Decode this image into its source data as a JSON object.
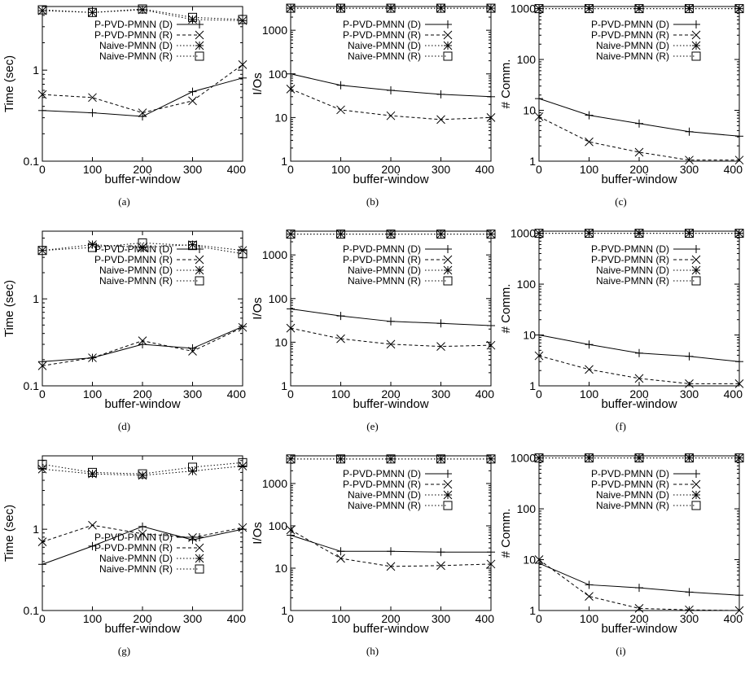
{
  "chart_data": [
    {
      "type": "line",
      "caption": "(a)",
      "xlabel": "buffer-window",
      "ylabel": "Time (sec)",
      "yscale": "log",
      "ylim": [
        0.1,
        5
      ],
      "xticks": [
        0,
        100,
        200,
        300,
        400
      ],
      "yticks": [
        0.1,
        1
      ],
      "legend_position": "top-right",
      "x": [
        0,
        100,
        200,
        300,
        400
      ],
      "series": [
        {
          "name": "P-PVD-PMNN (D)",
          "marker": "plus",
          "dash": "solid",
          "values": [
            0.36,
            0.34,
            0.31,
            0.58,
            0.82
          ]
        },
        {
          "name": "P-PVD-PMNN (R)",
          "marker": "cross",
          "dash": "dashed",
          "values": [
            0.54,
            0.5,
            0.34,
            0.46,
            1.15
          ]
        },
        {
          "name": "Naive-PMNN (D)",
          "marker": "star",
          "dash": "dotted",
          "values": [
            4.5,
            4.3,
            4.6,
            3.6,
            3.5
          ]
        },
        {
          "name": "Naive-PMNN (R)",
          "marker": "square",
          "dash": "dotted",
          "values": [
            4.6,
            4.3,
            4.7,
            3.8,
            3.6
          ]
        }
      ]
    },
    {
      "type": "line",
      "caption": "(b)",
      "xlabel": "buffer-window",
      "ylabel": "I/Os",
      "yscale": "log",
      "ylim": [
        1,
        3500
      ],
      "xticks": [
        0,
        100,
        200,
        300,
        400
      ],
      "yticks": [
        1,
        10,
        100,
        1000
      ],
      "legend_position": "top-right",
      "x": [
        0,
        100,
        200,
        300,
        400
      ],
      "series": [
        {
          "name": "P-PVD-PMNN (D)",
          "marker": "plus",
          "dash": "solid",
          "values": [
            100,
            55,
            42,
            34,
            30
          ]
        },
        {
          "name": "P-PVD-PMNN (R)",
          "marker": "cross",
          "dash": "dashed",
          "values": [
            45,
            15,
            11,
            9,
            10
          ]
        },
        {
          "name": "Naive-PMNN (D)",
          "marker": "star",
          "dash": "dotted",
          "values": [
            3200,
            3200,
            3200,
            3200,
            3200
          ]
        },
        {
          "name": "Naive-PMNN (R)",
          "marker": "square",
          "dash": "dotted",
          "values": [
            3200,
            3200,
            3200,
            3200,
            3200
          ]
        }
      ]
    },
    {
      "type": "line",
      "caption": "(c)",
      "xlabel": "buffer-window",
      "ylabel": "# Comm.",
      "yscale": "log",
      "ylim": [
        1,
        1100
      ],
      "xticks": [
        0,
        100,
        200,
        300,
        400
      ],
      "yticks": [
        1,
        10,
        100,
        1000
      ],
      "legend_position": "top-right",
      "x": [
        0,
        100,
        200,
        300,
        400
      ],
      "series": [
        {
          "name": "P-PVD-PMNN (D)",
          "marker": "plus",
          "dash": "solid",
          "values": [
            17,
            8,
            5.5,
            3.8,
            3.1
          ]
        },
        {
          "name": "P-PVD-PMNN (R)",
          "marker": "cross",
          "dash": "dashed",
          "values": [
            7.5,
            2.4,
            1.5,
            1.05,
            1.05
          ]
        },
        {
          "name": "Naive-PMNN (D)",
          "marker": "star",
          "dash": "dotted",
          "values": [
            1000,
            1000,
            1000,
            1000,
            1000
          ]
        },
        {
          "name": "Naive-PMNN (R)",
          "marker": "square",
          "dash": "dotted",
          "values": [
            1000,
            1000,
            1000,
            1000,
            1000
          ]
        }
      ]
    },
    {
      "type": "line",
      "caption": "(d)",
      "xlabel": "buffer-window",
      "ylabel": "Time (sec)",
      "yscale": "log",
      "ylim": [
        0.1,
        6
      ],
      "xticks": [
        0,
        100,
        200,
        300,
        400
      ],
      "yticks": [
        0.1,
        1
      ],
      "legend_position": "top-right",
      "x": [
        0,
        100,
        200,
        300,
        400
      ],
      "series": [
        {
          "name": "P-PVD-PMNN (D)",
          "marker": "plus",
          "dash": "solid",
          "values": [
            0.19,
            0.21,
            0.3,
            0.27,
            0.48
          ]
        },
        {
          "name": "P-PVD-PMNN (R)",
          "marker": "cross",
          "dash": "dashed",
          "values": [
            0.17,
            0.21,
            0.33,
            0.25,
            0.47
          ]
        },
        {
          "name": "Naive-PMNN (D)",
          "marker": "star",
          "dash": "dotted",
          "values": [
            3.6,
            4.2,
            3.9,
            4.2,
            3.6
          ]
        },
        {
          "name": "Naive-PMNN (R)",
          "marker": "square",
          "dash": "dotted",
          "values": [
            3.6,
            3.9,
            4.4,
            4.1,
            3.3
          ]
        }
      ]
    },
    {
      "type": "line",
      "caption": "(e)",
      "xlabel": "buffer-window",
      "ylabel": "I/Os",
      "yscale": "log",
      "ylim": [
        1,
        3500
      ],
      "xticks": [
        0,
        100,
        200,
        300,
        400
      ],
      "yticks": [
        1,
        10,
        100,
        1000
      ],
      "legend_position": "top-right",
      "x": [
        0,
        100,
        200,
        300,
        400
      ],
      "series": [
        {
          "name": "P-PVD-PMNN (D)",
          "marker": "plus",
          "dash": "solid",
          "values": [
            58,
            40,
            30,
            27,
            24
          ]
        },
        {
          "name": "P-PVD-PMNN (R)",
          "marker": "cross",
          "dash": "dashed",
          "values": [
            21,
            12,
            9,
            8,
            8.5
          ]
        },
        {
          "name": "Naive-PMNN (D)",
          "marker": "star",
          "dash": "dotted",
          "values": [
            3000,
            3000,
            3000,
            3000,
            3000
          ]
        },
        {
          "name": "Naive-PMNN (R)",
          "marker": "square",
          "dash": "dotted",
          "values": [
            3000,
            3000,
            3000,
            3000,
            3000
          ]
        }
      ]
    },
    {
      "type": "line",
      "caption": "(f)",
      "xlabel": "buffer-window",
      "ylabel": "# Comm.",
      "yscale": "log",
      "ylim": [
        1,
        1100
      ],
      "xticks": [
        0,
        100,
        200,
        300,
        400
      ],
      "yticks": [
        1,
        10,
        100,
        1000
      ],
      "legend_position": "top-right",
      "x": [
        0,
        100,
        200,
        300,
        400
      ],
      "series": [
        {
          "name": "P-PVD-PMNN (D)",
          "marker": "plus",
          "dash": "solid",
          "values": [
            10,
            6.5,
            4.4,
            3.8,
            3.0
          ]
        },
        {
          "name": "P-PVD-PMNN (R)",
          "marker": "cross",
          "dash": "dashed",
          "values": [
            3.9,
            2.1,
            1.4,
            1.1,
            1.1
          ]
        },
        {
          "name": "Naive-PMNN (D)",
          "marker": "star",
          "dash": "dotted",
          "values": [
            1000,
            1000,
            1000,
            1000,
            1000
          ]
        },
        {
          "name": "Naive-PMNN (R)",
          "marker": "square",
          "dash": "dotted",
          "values": [
            1000,
            1000,
            1000,
            1000,
            1000
          ]
        }
      ]
    },
    {
      "type": "line",
      "caption": "(g)",
      "xlabel": "buffer-window",
      "ylabel": "Time (sec)",
      "yscale": "log",
      "ylim": [
        0.1,
        8
      ],
      "xticks": [
        0,
        100,
        200,
        300,
        400
      ],
      "yticks": [
        0.1,
        1
      ],
      "legend_position": "bottom-right",
      "x": [
        0,
        100,
        200,
        300,
        400
      ],
      "series": [
        {
          "name": "P-PVD-PMNN (D)",
          "marker": "plus",
          "dash": "solid",
          "values": [
            0.37,
            0.62,
            1.08,
            0.74,
            1.0
          ]
        },
        {
          "name": "P-PVD-PMNN (R)",
          "marker": "cross",
          "dash": "dashed",
          "values": [
            0.7,
            1.12,
            0.88,
            0.79,
            1.05
          ]
        },
        {
          "name": "Naive-PMNN (D)",
          "marker": "star",
          "dash": "dotted",
          "values": [
            5.5,
            4.8,
            4.6,
            5.2,
            6.0
          ]
        },
        {
          "name": "Naive-PMNN (R)",
          "marker": "square",
          "dash": "dotted",
          "values": [
            6.3,
            5.0,
            4.8,
            5.8,
            6.6
          ]
        }
      ]
    },
    {
      "type": "line",
      "caption": "(h)",
      "xlabel": "buffer-window",
      "ylabel": "I/Os",
      "yscale": "log",
      "ylim": [
        1,
        4500
      ],
      "xticks": [
        0,
        100,
        200,
        300,
        400
      ],
      "yticks": [
        1,
        10,
        100,
        1000
      ],
      "legend_position": "top-right",
      "x": [
        0,
        100,
        200,
        300,
        400
      ],
      "series": [
        {
          "name": "P-PVD-PMNN (D)",
          "marker": "plus",
          "dash": "solid",
          "values": [
            60,
            25,
            25,
            24,
            24
          ]
        },
        {
          "name": "P-PVD-PMNN (R)",
          "marker": "cross",
          "dash": "dashed",
          "values": [
            80,
            17,
            11,
            11.5,
            12.5
          ]
        },
        {
          "name": "Naive-PMNN (D)",
          "marker": "star",
          "dash": "dotted",
          "values": [
            3800,
            3800,
            3800,
            3800,
            3800
          ]
        },
        {
          "name": "Naive-PMNN (R)",
          "marker": "square",
          "dash": "dotted",
          "values": [
            3800,
            3800,
            3800,
            3800,
            3800
          ]
        }
      ]
    },
    {
      "type": "line",
      "caption": "(i)",
      "xlabel": "buffer-window",
      "ylabel": "# Comm.",
      "yscale": "log",
      "ylim": [
        1,
        1100
      ],
      "xticks": [
        0,
        100,
        200,
        300,
        400
      ],
      "yticks": [
        1,
        10,
        100,
        1000
      ],
      "legend_position": "top-right",
      "x": [
        0,
        100,
        200,
        300,
        400
      ],
      "series": [
        {
          "name": "P-PVD-PMNN (D)",
          "marker": "plus",
          "dash": "solid",
          "values": [
            8.5,
            3.2,
            2.8,
            2.3,
            2.0
          ]
        },
        {
          "name": "P-PVD-PMNN (R)",
          "marker": "cross",
          "dash": "dashed",
          "values": [
            10,
            1.9,
            1.1,
            1.03,
            1.0
          ]
        },
        {
          "name": "Naive-PMNN (D)",
          "marker": "star",
          "dash": "dotted",
          "values": [
            1000,
            1000,
            1000,
            1000,
            1000
          ]
        },
        {
          "name": "Naive-PMNN (R)",
          "marker": "square",
          "dash": "dotted",
          "values": [
            1000,
            1000,
            1000,
            1000,
            1000
          ]
        }
      ]
    }
  ]
}
